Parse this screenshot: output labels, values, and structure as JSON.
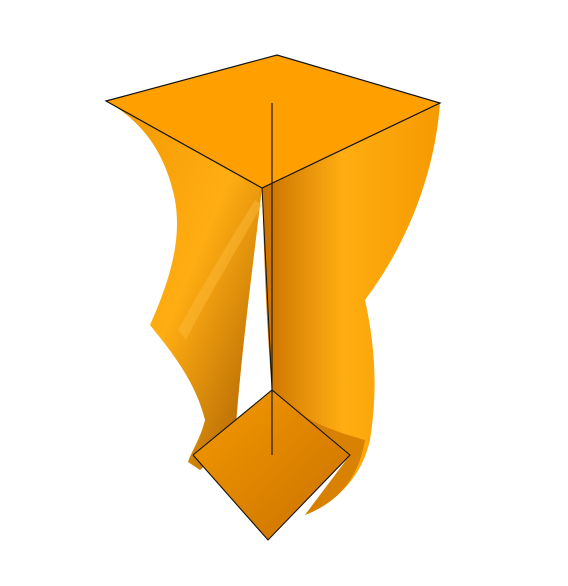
{
  "scene": {
    "object": "twisted-square-prism",
    "colors": {
      "background": "#ffffff",
      "surface_base": "#f29600",
      "surface_light": "#ffad12",
      "surface_mid": "#f59a00",
      "surface_dark": "#c97000",
      "surface_shadow": "#a45a00",
      "top_face": "#ff9f00",
      "edge_line": "#111111"
    }
  }
}
